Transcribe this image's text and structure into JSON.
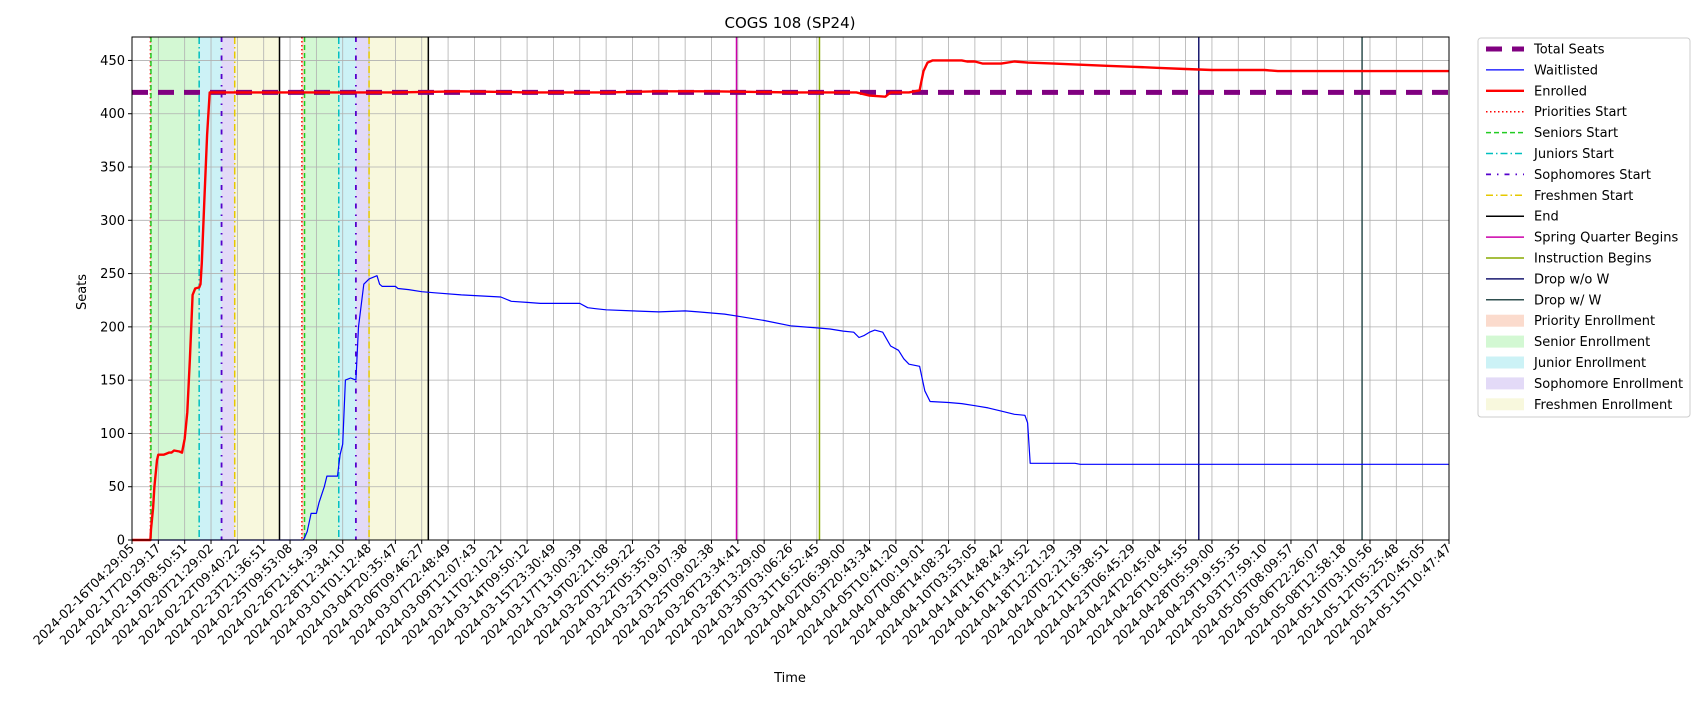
{
  "chart_data": {
    "type": "line",
    "title": "COGS 108 (SP24)",
    "xlabel": "Time",
    "ylabel": "Seats",
    "ylim": [
      0,
      472
    ],
    "yticks": [
      0,
      50,
      100,
      150,
      200,
      250,
      300,
      350,
      400,
      450
    ],
    "grid": true,
    "legend_position": "outside-right",
    "x_tick_labels": [
      "2024-02-16T04:29:05",
      "2024-02-17T20:29:17",
      "2024-02-19T08:50:51",
      "2024-02-20T21:29:02",
      "2024-02-22T09:40:22",
      "2024-02-23T21:36:51",
      "2024-02-25T09:53:08",
      "2024-02-26T21:54:39",
      "2024-02-28T12:34:10",
      "2024-03-01T01:12:48",
      "2024-03-04T20:35:47",
      "2024-03-06T09:46:27",
      "2024-03-07T22:48:49",
      "2024-03-09T12:07:43",
      "2024-03-11T02:10:21",
      "2024-03-14T09:50:12",
      "2024-03-15T23:30:49",
      "2024-03-17T13:00:39",
      "2024-03-19T02:21:08",
      "2024-03-20T15:59:22",
      "2024-03-22T05:35:03",
      "2024-03-23T19:07:38",
      "2024-03-25T09:02:38",
      "2024-03-26T23:34:41",
      "2024-03-28T13:29:00",
      "2024-03-30T03:06:26",
      "2024-03-31T16:52:45",
      "2024-04-02T06:39:00",
      "2024-04-03T20:43:34",
      "2024-04-05T10:41:20",
      "2024-04-07T00:19:01",
      "2024-04-08T14:08:32",
      "2024-04-10T03:53:05",
      "2024-04-14T14:48:42",
      "2024-04-16T14:34:52",
      "2024-04-18T12:21:29",
      "2024-04-20T02:21:39",
      "2024-04-21T16:38:51",
      "2024-04-23T06:45:29",
      "2024-04-24T20:45:04",
      "2024-04-26T10:54:55",
      "2024-04-28T05:59:00",
      "2024-04-29T19:55:35",
      "2024-05-03T17:59:10",
      "2024-05-05T08:09:57",
      "2024-05-06T22:26:07",
      "2024-05-08T12:58:18",
      "2024-05-10T03:10:56",
      "2024-05-12T05:25:48",
      "2024-05-13T20:45:05",
      "2024-05-15T10:47:47"
    ],
    "x_index_range": [
      0,
      50
    ],
    "series": [
      {
        "name": "Total Seats",
        "color": "#800080",
        "style": "dashed-thick",
        "points": [
          [
            0,
            420
          ],
          [
            50,
            420
          ]
        ]
      },
      {
        "name": "Waitlisted",
        "color": "#0000ff",
        "style": "solid-thin",
        "points": [
          [
            0,
            0
          ],
          [
            5.75,
            0
          ],
          [
            5.9,
            0
          ],
          [
            6,
            0
          ],
          [
            6.4,
            0
          ],
          [
            6.5,
            0
          ],
          [
            6.55,
            2
          ],
          [
            6.65,
            8
          ],
          [
            6.8,
            25
          ],
          [
            7.0,
            25
          ],
          [
            7.1,
            35
          ],
          [
            7.3,
            50
          ],
          [
            7.4,
            60
          ],
          [
            7.8,
            60
          ],
          [
            7.9,
            80
          ],
          [
            8.0,
            90
          ],
          [
            8.1,
            150
          ],
          [
            8.3,
            152
          ],
          [
            8.5,
            150
          ],
          [
            8.6,
            200
          ],
          [
            8.8,
            240
          ],
          [
            9.0,
            245
          ],
          [
            9.3,
            248
          ],
          [
            9.4,
            240
          ],
          [
            9.5,
            238
          ],
          [
            10.0,
            238
          ],
          [
            10.1,
            236
          ],
          [
            10.5,
            235
          ],
          [
            11.0,
            233
          ],
          [
            11.5,
            232
          ],
          [
            12.5,
            230
          ],
          [
            14.0,
            228
          ],
          [
            14.4,
            224
          ],
          [
            15.0,
            223
          ],
          [
            15.5,
            222
          ],
          [
            17.0,
            222
          ],
          [
            17.3,
            218
          ],
          [
            17.6,
            217
          ],
          [
            18.0,
            216
          ],
          [
            19.0,
            215
          ],
          [
            20.0,
            214
          ],
          [
            21.0,
            215
          ],
          [
            21.5,
            214
          ],
          [
            22.0,
            213
          ],
          [
            22.5,
            212
          ],
          [
            23.0,
            210
          ],
          [
            24.0,
            206
          ],
          [
            25.0,
            201
          ],
          [
            25.5,
            200
          ],
          [
            26.0,
            199
          ],
          [
            26.5,
            198
          ],
          [
            27.0,
            196
          ],
          [
            27.4,
            195
          ],
          [
            27.6,
            190
          ],
          [
            27.8,
            192
          ],
          [
            28.0,
            195
          ],
          [
            28.2,
            197
          ],
          [
            28.5,
            195
          ],
          [
            28.8,
            182
          ],
          [
            29.1,
            178
          ],
          [
            29.3,
            170
          ],
          [
            29.5,
            165
          ],
          [
            29.9,
            163
          ],
          [
            30.1,
            140
          ],
          [
            30.3,
            130
          ],
          [
            31.0,
            129
          ],
          [
            31.5,
            128
          ],
          [
            32.0,
            126
          ],
          [
            32.5,
            124
          ],
          [
            33.0,
            121
          ],
          [
            33.5,
            118
          ],
          [
            33.9,
            117
          ],
          [
            34.0,
            110
          ],
          [
            34.1,
            72
          ],
          [
            35.0,
            72
          ],
          [
            35.8,
            72
          ],
          [
            36.0,
            71
          ],
          [
            40.0,
            71
          ],
          [
            45.0,
            71
          ],
          [
            50.0,
            71
          ]
        ]
      },
      {
        "name": "Enrolled",
        "color": "#ff0000",
        "style": "solid-thick",
        "points": [
          [
            0,
            0
          ],
          [
            0.5,
            0
          ],
          [
            0.7,
            0
          ],
          [
            0.72,
            10
          ],
          [
            0.8,
            30
          ],
          [
            0.85,
            50
          ],
          [
            0.95,
            75
          ],
          [
            1.0,
            80
          ],
          [
            1.2,
            80
          ],
          [
            1.3,
            81
          ],
          [
            1.4,
            82
          ],
          [
            1.5,
            82
          ],
          [
            1.6,
            84
          ],
          [
            1.8,
            83
          ],
          [
            1.9,
            82
          ],
          [
            2.0,
            95
          ],
          [
            2.1,
            120
          ],
          [
            2.2,
            170
          ],
          [
            2.3,
            230
          ],
          [
            2.4,
            236
          ],
          [
            2.55,
            237
          ],
          [
            2.6,
            240
          ],
          [
            2.65,
            260
          ],
          [
            2.75,
            320
          ],
          [
            2.85,
            380
          ],
          [
            2.95,
            420
          ],
          [
            4.0,
            420
          ],
          [
            6.0,
            420
          ],
          [
            6.5,
            420
          ],
          [
            9.0,
            420
          ],
          [
            10.0,
            420
          ],
          [
            12.5,
            421
          ],
          [
            15.0,
            420
          ],
          [
            18.0,
            420
          ],
          [
            20.0,
            421
          ],
          [
            22.0,
            421
          ],
          [
            25.0,
            420
          ],
          [
            27.0,
            420
          ],
          [
            27.5,
            420
          ],
          [
            28.0,
            417
          ],
          [
            28.6,
            416
          ],
          [
            28.8,
            420
          ],
          [
            29.5,
            420
          ],
          [
            29.9,
            422
          ],
          [
            30.05,
            440
          ],
          [
            30.2,
            448
          ],
          [
            30.4,
            450
          ],
          [
            31.0,
            450
          ],
          [
            31.5,
            450
          ],
          [
            31.7,
            449
          ],
          [
            32.0,
            449
          ],
          [
            32.3,
            447
          ],
          [
            33.0,
            447
          ],
          [
            33.5,
            449
          ],
          [
            34.0,
            448
          ],
          [
            35.0,
            447
          ],
          [
            36.0,
            446
          ],
          [
            37.0,
            445
          ],
          [
            38.0,
            444
          ],
          [
            39.0,
            443
          ],
          [
            40.0,
            442
          ],
          [
            41.0,
            441
          ],
          [
            42.0,
            441
          ],
          [
            43.0,
            441
          ],
          [
            43.5,
            440
          ],
          [
            45.0,
            440
          ],
          [
            50.0,
            440
          ]
        ]
      }
    ],
    "vertical_lines": [
      {
        "name": "Priorities Start",
        "color": "#ff0000",
        "style": "dotted",
        "x": [
          0.7,
          6.45
        ]
      },
      {
        "name": "Seniors Start",
        "color": "#22cc22",
        "style": "dashed",
        "x": [
          0.72,
          6.55
        ]
      },
      {
        "name": "Juniors Start",
        "color": "#00bfbf",
        "style": "dashdot",
        "x": [
          2.55,
          7.85
        ]
      },
      {
        "name": "Sophomores Start",
        "color": "#5500cc",
        "style": "dashdot-sparse",
        "x": [
          3.4,
          8.5
        ]
      },
      {
        "name": "Freshmen Start",
        "color": "#e6c800",
        "style": "dashdot",
        "x": [
          3.9,
          9.0
        ]
      },
      {
        "name": "End",
        "color": "#000000",
        "style": "solid",
        "x": [
          5.6,
          11.25
        ]
      },
      {
        "name": "Spring Quarter Begins",
        "color": "#cc00aa",
        "style": "solid",
        "x": [
          22.95
        ]
      },
      {
        "name": "Instruction Begins",
        "color": "#88aa00",
        "style": "solid",
        "x": [
          26.1
        ]
      },
      {
        "name": "Drop w/o W",
        "color": "#191970",
        "style": "solid",
        "x": [
          40.5
        ]
      },
      {
        "name": "Drop w/ W",
        "color": "#2f4f4f",
        "style": "solid",
        "x": [
          46.7
        ]
      }
    ],
    "shaded_regions": [
      {
        "name": "Priority Enrollment",
        "color": "#f4a582",
        "ranges": [
          [
            0.7,
            0.72
          ],
          [
            6.45,
            6.55
          ]
        ]
      },
      {
        "name": "Senior Enrollment",
        "color": "#90ee90",
        "ranges": [
          [
            0.72,
            2.55
          ],
          [
            6.55,
            7.85
          ]
        ]
      },
      {
        "name": "Junior Enrollment",
        "color": "#7fdfe8",
        "ranges": [
          [
            2.55,
            3.4
          ],
          [
            7.85,
            8.5
          ]
        ]
      },
      {
        "name": "Sophomore Enrollment",
        "color": "#b9a3ea",
        "ranges": [
          [
            3.4,
            3.9
          ],
          [
            8.5,
            9.0
          ]
        ]
      },
      {
        "name": "Freshmen Enrollment",
        "color": "#eeeeaa",
        "ranges": [
          [
            3.9,
            5.6
          ],
          [
            9.0,
            11.25
          ]
        ]
      }
    ],
    "legend": [
      {
        "label": "Total Seats",
        "kind": "line",
        "color": "#800080",
        "style": "dashed-thick"
      },
      {
        "label": "Waitlisted",
        "kind": "line",
        "color": "#0000ff",
        "style": "solid-thin"
      },
      {
        "label": "Enrolled",
        "kind": "line",
        "color": "#ff0000",
        "style": "solid-thick"
      },
      {
        "label": "Priorities Start",
        "kind": "line",
        "color": "#ff0000",
        "style": "dotted"
      },
      {
        "label": "Seniors Start",
        "kind": "line",
        "color": "#22cc22",
        "style": "dashed"
      },
      {
        "label": "Juniors Start",
        "kind": "line",
        "color": "#00bfbf",
        "style": "dashdot"
      },
      {
        "label": "Sophomores Start",
        "kind": "line",
        "color": "#5500cc",
        "style": "dashdot-sparse"
      },
      {
        "label": "Freshmen Start",
        "kind": "line",
        "color": "#e6c800",
        "style": "dashdot"
      },
      {
        "label": "End",
        "kind": "line",
        "color": "#000000",
        "style": "solid"
      },
      {
        "label": "Spring Quarter Begins",
        "kind": "line",
        "color": "#cc00aa",
        "style": "solid"
      },
      {
        "label": "Instruction Begins",
        "kind": "line",
        "color": "#88aa00",
        "style": "solid"
      },
      {
        "label": "Drop w/o W",
        "kind": "line",
        "color": "#191970",
        "style": "solid"
      },
      {
        "label": "Drop w/ W",
        "kind": "line",
        "color": "#2f4f4f",
        "style": "solid"
      },
      {
        "label": "Priority Enrollment",
        "kind": "patch",
        "color": "#f4a582"
      },
      {
        "label": "Senior Enrollment",
        "kind": "patch",
        "color": "#90ee90"
      },
      {
        "label": "Junior Enrollment",
        "kind": "patch",
        "color": "#7fdfe8"
      },
      {
        "label": "Sophomore Enrollment",
        "kind": "patch",
        "color": "#b9a3ea"
      },
      {
        "label": "Freshmen Enrollment",
        "kind": "patch",
        "color": "#eeeeaa"
      }
    ]
  }
}
